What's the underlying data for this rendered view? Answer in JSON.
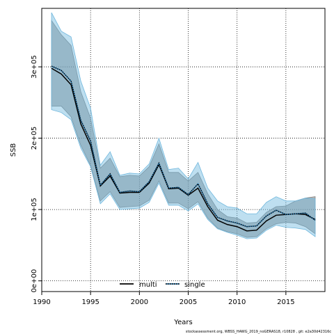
{
  "chart_data": {
    "type": "area",
    "xlabel": "Years",
    "ylabel": "SSB",
    "xlim": [
      1990,
      2019
    ],
    "ylim": [
      -15000,
      382000
    ],
    "x_ticks": [
      1990,
      1995,
      2000,
      2005,
      2010,
      2015
    ],
    "y_ticks": [
      0,
      100000,
      200000,
      300000
    ],
    "y_tick_labels": [
      "0e+00",
      "1e+05",
      "2e+05",
      "3e+05"
    ],
    "grid": "dotted",
    "legend_position": "bottom-center",
    "footnote": "stockassessment.org,  WBSS_HAWG_2019_noGERAS18,  r10828 ,  git:  e2a30d42316c",
    "x": [
      1991,
      1992,
      1993,
      1994,
      1995,
      1996,
      1997,
      1998,
      1999,
      2000,
      2001,
      2002,
      2003,
      2004,
      2005,
      2006,
      2007,
      2008,
      2009,
      2010,
      2011,
      2012,
      2013,
      2014,
      2015,
      2016,
      2017,
      2018
    ],
    "series": [
      {
        "name": "multi",
        "color": "#000000",
        "line_style": "solid",
        "band_color": "#808080",
        "values": [
          298000,
          290000,
          275000,
          220000,
          190000,
          133000,
          147000,
          123000,
          124000,
          124000,
          137000,
          163000,
          129000,
          130000,
          120000,
          130000,
          104000,
          85000,
          79000,
          76000,
          70000,
          71000,
          84000,
          92000,
          93000,
          94000,
          93000,
          86000
        ],
        "lower": [
          245000,
          245000,
          230000,
          190000,
          162000,
          112000,
          125000,
          103000,
          104000,
          105000,
          113000,
          140000,
          109000,
          109000,
          101000,
          111000,
          88000,
          74000,
          69000,
          66000,
          61000,
          62000,
          73000,
          80000,
          82000,
          81000,
          76000,
          66000
        ],
        "upper": [
          365000,
          345000,
          330000,
          265000,
          228000,
          158000,
          172000,
          146000,
          148000,
          147000,
          160000,
          192000,
          152000,
          152000,
          140000,
          152000,
          122000,
          100000,
          90000,
          88000,
          81000,
          82000,
          96000,
          104000,
          105000,
          112000,
          116000,
          118000
        ]
      },
      {
        "name": "single",
        "color": "#1F77B4",
        "line_style": "dotted",
        "band_color": "#6FB7DD",
        "values": [
          301000,
          295000,
          280000,
          225000,
          196000,
          134000,
          150000,
          124000,
          126000,
          125000,
          139000,
          165000,
          130000,
          131000,
          121000,
          136000,
          108000,
          89000,
          84000,
          81000,
          76000,
          77000,
          91000,
          99000,
          93000,
          94000,
          95000,
          85000
        ],
        "lower": [
          240000,
          236000,
          226000,
          186000,
          160000,
          108000,
          122000,
          100000,
          101000,
          102000,
          110000,
          137000,
          106000,
          106000,
          98000,
          108000,
          86000,
          73000,
          68000,
          64000,
          59000,
          60000,
          71000,
          78000,
          75000,
          74000,
          72000,
          62000
        ],
        "upper": [
          376000,
          350000,
          342000,
          280000,
          242000,
          162000,
          181000,
          148000,
          151000,
          150000,
          164000,
          200000,
          156000,
          158000,
          143000,
          166000,
          130000,
          112000,
          104000,
          102000,
          94000,
          94000,
          110000,
          118000,
          112000,
          112000,
          116000,
          115000
        ]
      }
    ]
  }
}
